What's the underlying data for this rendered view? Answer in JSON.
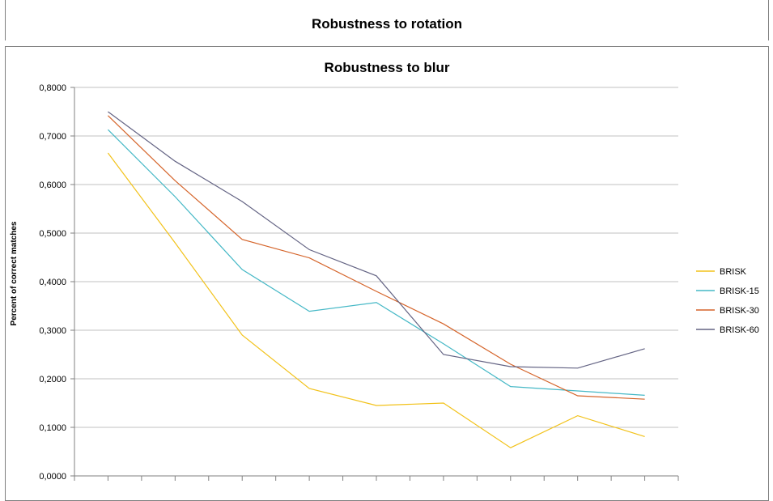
{
  "back_chart": {
    "title": "Robustness to rotation"
  },
  "chart_data": {
    "type": "line",
    "title": "Robustness to blur",
    "xlabel": "",
    "ylabel": "Percent of correct matches",
    "ylim": [
      0,
      0.8
    ],
    "yticks": [
      "0,0000",
      "0,1000",
      "0,2000",
      "0,3000",
      "0,4000",
      "0,5000",
      "0,6000",
      "0,7000",
      "0,8000"
    ],
    "grid": true,
    "legend": "right",
    "x": [
      1,
      2,
      3,
      4,
      5,
      6,
      7,
      8,
      9,
      10,
      11,
      12,
      13,
      14,
      15,
      16,
      17
    ],
    "series": [
      {
        "name": "BRISK",
        "color": "#f2c21a",
        "values": [
          0.665,
          null,
          0.48,
          null,
          0.29,
          null,
          0.18,
          null,
          0.145,
          null,
          0.15,
          null,
          0.058,
          null,
          0.124,
          null,
          0.081
        ]
      },
      {
        "name": "BRISK-15",
        "color": "#45b8c6",
        "values": [
          0.713,
          null,
          0.575,
          null,
          0.425,
          null,
          0.339,
          null,
          0.357,
          null,
          0.272,
          null,
          0.184,
          null,
          0.175,
          null,
          0.166
        ]
      },
      {
        "name": "BRISK-30",
        "color": "#d5642a",
        "values": [
          0.742,
          null,
          0.608,
          null,
          0.487,
          null,
          0.449,
          null,
          0.38,
          null,
          0.313,
          null,
          0.23,
          null,
          0.165,
          null,
          0.158
        ]
      },
      {
        "name": "BRISK-60",
        "color": "#646484",
        "values": [
          0.75,
          null,
          0.648,
          null,
          0.565,
          null,
          0.466,
          null,
          0.412,
          null,
          0.25,
          null,
          0.225,
          null,
          0.222,
          null,
          0.262
        ]
      }
    ]
  }
}
